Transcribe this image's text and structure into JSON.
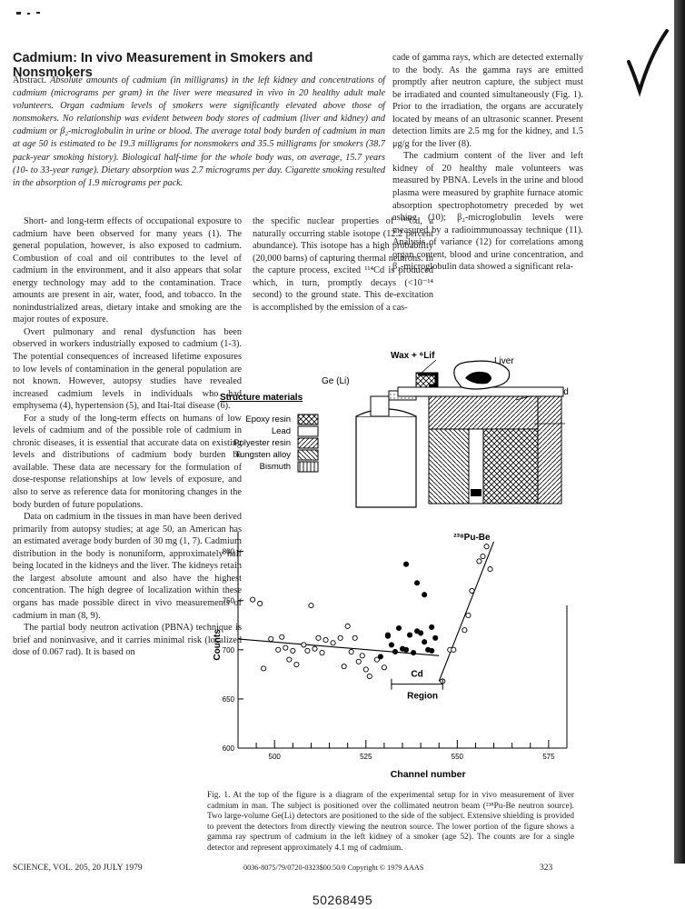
{
  "article": {
    "title": "Cadmium: In vivo Measurement in Smokers and Nonsmokers",
    "abstract_lead": "Abstract.",
    "abstract_body": "Absolute amounts of cadmium (in milligrams) in the left kidney and concentrations of cadmium (micrograms per gram) in the liver were measured in vivo in 20 healthy adult male volunteers. Organ cadmium levels of smokers were significantly elevated above those of nonsmokers. No relationship was evident between body stores of cadmium (liver and kidney) and cadmium or β₂-microglobulin in urine or blood. The average total body burden of cadmium in man at age 50 is estimated to be 19.3 milligrams for nonsmokers and 35.5 milligrams for smokers (38.7 pack-year smoking history). Biological half-time for the whole body was, on average, 15.7 years (10- to 33-year range). Dietary absorption was 2.7 micrograms per day. Cigarette smoking resulted in the absorption of 1.9 micrograms per pack."
  },
  "columns": {
    "col1": [
      "Short- and long-term effects of occupational exposure to cadmium have been observed for many years (1). The general population, however, is also exposed to cadmium. Combustion of coal and oil contributes to the level of cadmium in the environment, and it also appears that solar energy technology may add to the contamination. Trace amounts are present in air, water, food, and tobacco. In the nonindustrialized areas, dietary intake and smoking are the major routes of exposure.",
      "Overt pulmonary and renal dysfunction has been observed in workers industrially exposed to cadmium (1-3). The potential consequences of increased lifetime exposures to low levels of contamination in the general population are not known. However, autopsy studies have revealed increased cadmium levels in individuals who had emphysema (4), hypertension (5), and Itai-Itai disease (6).",
      "For a study of the long-term effects on humans of low levels of cadmium and of the possible role of cadmium in chronic diseases, it is essential that accurate data on existing levels and distributions of cadmium body burden be available. These data are necessary for the formulation of dose-response relationships at low levels of exposure, and also to serve as reference data for monitoring changes in the body burden of future populations.",
      "Data on cadmium in the tissues in man have been derived primarily from autopsy studies; at age 50, an American has an estimated average body burden of 30 mg (1, 7). Cadmium distribution in the body is nonuniform, approximately half being located in the kidneys and the liver. The kidneys retain the largest absolute amount and also have the highest concentration. The high degree of localization within these organs has made possible direct in vivo measurements of cadmium in man (8, 9).",
      "The partial body neutron activation (PBNA) technique is brief and noninvasive, and it carries minimal risk (localized dose of 0.067 rad). It is based on"
    ],
    "col2": "the specific nuclear properties of ¹¹³Cd, a naturally occurring stable isotope (12.2 percent abundance). This isotope has a high probability (20,000 barns) of capturing thermal neutrons. In the capture process, excited ¹¹⁴Cd is produced which, in turn, promptly decays (<10⁻¹⁴ second) to the ground state. This de-excitation is accomplished by the emission of a cas-",
    "col3": [
      "cade of gamma rays, which are detected externally to the body. As the gamma rays are emitted promptly after neutron capture, the subject must be irradiated and counted simultaneously (Fig. 1). Prior to the irradiation, the organs are accurately located by means of an ultrasonic scanner. Present detection limits are 2.5 mg for the kidney, and 1.5 μg/g for the liver (8).",
      "The cadmium content of the liver and left kidney of 20 healthy male volunteers was measured by PBNA. Levels in the urine and blood plasma were measured by graphite furnace atomic absorption spectrophotometry preceded by wet ashing (10); β₂-microglobulin levels were measured by a radioimmunoassay technique (11). Analysis of variance (12) for correlations among organ content, blood and urine concentration, and β₂-microglobulin data showed a significant rela-"
    ]
  },
  "diagram": {
    "wax_label": "Wax + ⁶Lif",
    "liver_label": "Liver",
    "bed_label": "Bed",
    "detector_label": "Ge (Li)",
    "materials_title": "Structure materials",
    "materials": [
      {
        "name": "Epoxy resin",
        "pattern": "cross"
      },
      {
        "name": "Lead",
        "pattern": "plain"
      },
      {
        "name": "Polyester resin",
        "pattern": "hatch"
      },
      {
        "name": "Tungsten alloy",
        "pattern": "backhatch"
      },
      {
        "name": "Bismuth",
        "pattern": "vlines"
      }
    ]
  },
  "chart_data": {
    "type": "scatter",
    "xlabel": "Channel number",
    "ylabel": "Counts",
    "xlim": [
      490,
      580
    ],
    "ylim": [
      600,
      820
    ],
    "x_ticks": [
      500,
      525,
      550,
      575
    ],
    "y_ticks": [
      600,
      650,
      700,
      750,
      800
    ],
    "annotations": {
      "source": "²³⁸Pu-Be",
      "region_label": "Cd",
      "region_sub": "Region"
    },
    "region": [
      532,
      546
    ],
    "series": [
      {
        "marker": "open",
        "points": [
          [
            494,
            751
          ],
          [
            496,
            747
          ],
          [
            497,
            681
          ],
          [
            499,
            711
          ],
          [
            501,
            700
          ],
          [
            502,
            713
          ],
          [
            503,
            702
          ],
          [
            504,
            690
          ],
          [
            505,
            699
          ],
          [
            506,
            685
          ],
          [
            508,
            705
          ],
          [
            509,
            699
          ],
          [
            510,
            745
          ],
          [
            511,
            701
          ],
          [
            512,
            712
          ],
          [
            513,
            697
          ],
          [
            514,
            710
          ],
          [
            516,
            707
          ],
          [
            518,
            712
          ],
          [
            519,
            683
          ],
          [
            520,
            724
          ],
          [
            521,
            698
          ],
          [
            522,
            712
          ],
          [
            523,
            688
          ],
          [
            524,
            694
          ],
          [
            525,
            680
          ],
          [
            526,
            673
          ],
          [
            528,
            690
          ],
          [
            530,
            682
          ],
          [
            531,
            715
          ],
          [
            546,
            668
          ],
          [
            548,
            700
          ],
          [
            549,
            700
          ],
          [
            552,
            720
          ],
          [
            553,
            735
          ],
          [
            554,
            760
          ],
          [
            556,
            790
          ],
          [
            557,
            795
          ],
          [
            558,
            805
          ],
          [
            559,
            782
          ]
        ]
      },
      {
        "marker": "filled",
        "points": [
          [
            529,
            693
          ],
          [
            531,
            714
          ],
          [
            532,
            705
          ],
          [
            533,
            698
          ],
          [
            534,
            722
          ],
          [
            535,
            701
          ],
          [
            536,
            700
          ],
          [
            537,
            715
          ],
          [
            538,
            697
          ],
          [
            539,
            719
          ],
          [
            540,
            717
          ],
          [
            541,
            708
          ],
          [
            542,
            700
          ],
          [
            543,
            699
          ],
          [
            543,
            723
          ],
          [
            544,
            712
          ],
          [
            539,
            768
          ],
          [
            536,
            787
          ],
          [
            541,
            756
          ]
        ]
      }
    ],
    "background_line": [
      [
        490,
        711
      ],
      [
        545,
        694
      ]
    ],
    "peak_line": [
      [
        545,
        668
      ],
      [
        560,
        810
      ]
    ]
  },
  "caption": {
    "label": "Fig. 1.",
    "text": "At the top of the figure is a diagram of the experimental setup for in vivo measurement of liver cadmium in man. The subject is positioned over the collimated neutron beam (²³⁸Pu-Be neutron source). Two large-volume Ge(Li) detectors are positioned to the side of the subject. Extensive shielding is provided to prevent the detectors from directly viewing the neutron source. The lower portion of the figure shows a gamma ray spectrum of cadmium in the left kidney of a smoker (age 52). The counts are for a single detector and represent approximately 4.1 mg of cadmium."
  },
  "footer": {
    "journal": "SCIENCE, VOL. 205, 20 JULY 1979",
    "copyright": "0036-8075/79/0720-0323$00.50/0 Copyright © 1979 AAAS",
    "page_number": "323"
  },
  "document_id": "50268495"
}
